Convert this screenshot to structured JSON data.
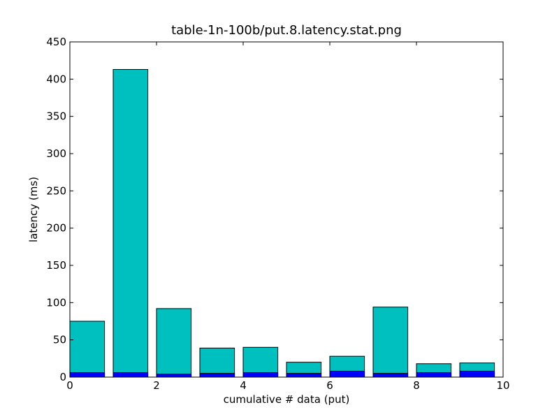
{
  "chart_data": {
    "type": "bar",
    "title": "table-1n-100b/put.8.latency.stat.png",
    "xlabel": "cumulative # data (put)",
    "ylabel": "latency (ms)",
    "xlim": [
      0,
      10
    ],
    "ylim": [
      0,
      450
    ],
    "xticks": [
      0,
      2,
      4,
      6,
      8,
      10
    ],
    "yticks": [
      0,
      50,
      100,
      150,
      200,
      250,
      300,
      350,
      400,
      450
    ],
    "bar_width": 0.8,
    "grid": false,
    "legend": "none",
    "x": [
      0,
      1,
      2,
      3,
      4,
      5,
      6,
      7,
      8,
      9
    ],
    "series": [
      {
        "color": "#00bfbf",
        "values": [
          75,
          413,
          92,
          39,
          40,
          20,
          28,
          94,
          18,
          19
        ]
      },
      {
        "color": "#0000ff",
        "values": [
          6,
          6,
          4,
          5,
          6,
          5,
          8,
          5,
          6,
          8
        ]
      }
    ]
  }
}
